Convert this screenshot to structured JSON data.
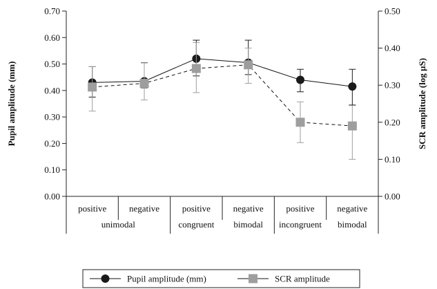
{
  "chart_data": {
    "type": "line",
    "categories": [
      "positive unimodal",
      "negative unimodal",
      "positive congruent bimodal",
      "negative congruent bimodal",
      "positive incongruent bimodal",
      "negative incongruent bimodal"
    ],
    "category_rows": {
      "row1": [
        "positive",
        "negative",
        "positive",
        "negative",
        "positive",
        "negative"
      ],
      "row2": [
        {
          "text": "unimodal",
          "span": [
            0,
            1
          ]
        },
        {
          "text": "congruent",
          "span": [
            2,
            2
          ]
        },
        {
          "text": "bimodal",
          "span": [
            3,
            3
          ]
        },
        {
          "text": "incongruent",
          "span": [
            4,
            4
          ]
        },
        {
          "text": "bimodal",
          "span": [
            5,
            5
          ]
        }
      ]
    },
    "ylabel": "Pupil amplitude (mm)",
    "y2label": "SCR amplitude (log µS)",
    "ylim": [
      0,
      0.7
    ],
    "y2lim": [
      0,
      0.5
    ],
    "yticks": [
      "0.00",
      "0.10",
      "0.20",
      "0.30",
      "0.40",
      "0.50",
      "0.60",
      "0.70"
    ],
    "y2ticks": [
      "0.00",
      "0.10",
      "0.20",
      "0.30",
      "0.40",
      "0.50"
    ],
    "series": [
      {
        "name": "Pupil amplitude (mm)",
        "axis": "left",
        "line": "solid",
        "marker": "circle",
        "color": "#1a1a1a",
        "values": [
          0.43,
          0.435,
          0.52,
          0.505,
          0.44,
          0.415
        ],
        "err_low": [
          0.375,
          0.41,
          0.455,
          0.46,
          0.395,
          0.345
        ],
        "err_high": [
          0.49,
          0.505,
          0.59,
          0.59,
          0.48,
          0.48
        ]
      },
      {
        "name": "SCR amplitude",
        "axis": "right",
        "line": "dashed",
        "marker": "square",
        "color": "#9e9e9e",
        "values": [
          0.295,
          0.305,
          0.345,
          0.355,
          0.2,
          0.19
        ],
        "err_low": [
          0.23,
          0.26,
          0.28,
          0.305,
          0.145,
          0.1
        ],
        "err_high": [
          0.35,
          0.36,
          0.415,
          0.4,
          0.255,
          0.245
        ]
      }
    ],
    "legend_position": "bottom",
    "grid": false
  }
}
